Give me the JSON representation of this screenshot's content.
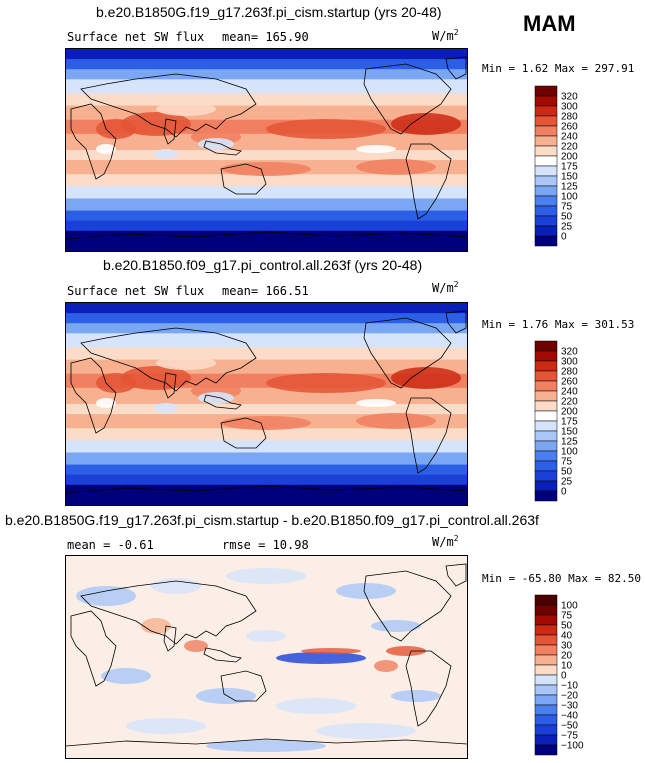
{
  "season_label": "MAM",
  "units": {
    "base": "W/m",
    "exp": "2"
  },
  "panels": [
    {
      "title": "b.e20.B1850G.f19_g17.263f.pi_cism.startup (yrs 20-48)",
      "subtitle_left": "Surface net SW flux",
      "subtitle_right": "mean= 165.90",
      "minmax": "Min =   1.62 Max = 297.91",
      "kind": "abs"
    },
    {
      "title": "b.e20.B1850.f09_g17.pi_control.all.263f (yrs 20-48)",
      "subtitle_left": "Surface net SW flux",
      "subtitle_right": "mean= 166.51",
      "minmax": "Min =   1.76 Max = 301.53",
      "kind": "abs"
    },
    {
      "title": "b.e20.B1850G.f19_g17.263f.pi_cism.startup - b.e20.B1850.f09_g17.pi_control.all.263f",
      "subtitle_left": "mean =  -0.61",
      "subtitle_right": "rmse =  10.98",
      "minmax": "Min = -65.80 Max =  82.50",
      "kind": "diff"
    }
  ],
  "chart_data": [
    {
      "type": "heatmap",
      "title": "b.e20.B1850G.f19_g17.263f.pi_cism.startup (yrs 20-48)",
      "variable": "Surface net SW flux",
      "mean": 165.9,
      "min": 1.62,
      "max": 297.91,
      "colorbar_levels": [
        0,
        25,
        50,
        75,
        100,
        125,
        150,
        175,
        200,
        220,
        240,
        260,
        280,
        300,
        320
      ],
      "colorbar_labels": [
        "320",
        "300",
        "280",
        "260",
        "240",
        "220",
        "200",
        "175",
        "150",
        "125",
        "100",
        "75",
        "50",
        "25",
        "0"
      ],
      "colors": [
        "#00007d",
        "#0a1fb8",
        "#1a40d8",
        "#2c5fe6",
        "#4a7fee",
        "#7aa7f4",
        "#a9c6f8",
        "#d6e4fb",
        "#ffffff",
        "#fbdcc8",
        "#f7b190",
        "#f08060",
        "#e45535",
        "#cc2a15",
        "#a00a00",
        "#6e0000"
      ]
    },
    {
      "type": "heatmap",
      "title": "b.e20.B1850.f09_g17.pi_control.all.263f (yrs 20-48)",
      "variable": "Surface net SW flux",
      "mean": 166.51,
      "min": 1.76,
      "max": 301.53,
      "colorbar_levels": [
        0,
        25,
        50,
        75,
        100,
        125,
        150,
        175,
        200,
        220,
        240,
        260,
        280,
        300,
        320
      ],
      "colorbar_labels": [
        "320",
        "300",
        "280",
        "260",
        "240",
        "220",
        "200",
        "175",
        "150",
        "125",
        "100",
        "75",
        "50",
        "25",
        "0"
      ],
      "colors": [
        "#00007d",
        "#0a1fb8",
        "#1a40d8",
        "#2c5fe6",
        "#4a7fee",
        "#7aa7f4",
        "#a9c6f8",
        "#d6e4fb",
        "#ffffff",
        "#fbdcc8",
        "#f7b190",
        "#f08060",
        "#e45535",
        "#cc2a15",
        "#a00a00",
        "#6e0000"
      ]
    },
    {
      "type": "heatmap",
      "title": "b.e20.B1850G.f19_g17.263f.pi_cism.startup - b.e20.B1850.f09_g17.pi_control.all.263f",
      "variable": "difference",
      "mean": -0.61,
      "rmse": 10.98,
      "min": -65.8,
      "max": 82.5,
      "colorbar_levels": [
        -100,
        -75,
        -50,
        -40,
        -30,
        -20,
        -10,
        0,
        10,
        20,
        30,
        40,
        50,
        75,
        100
      ],
      "colorbar_labels": [
        "100",
        "75",
        "50",
        "40",
        "30",
        "20",
        "10",
        "0",
        "−10",
        "−20",
        "−30",
        "−40",
        "−50",
        "−75",
        "−100"
      ],
      "colors": [
        "#00007d",
        "#0a1fb8",
        "#1a40d8",
        "#2c5fe6",
        "#4a7fee",
        "#7aa7f4",
        "#a9c6f8",
        "#d6e4fb",
        "#fbdcc8",
        "#f7b190",
        "#f08060",
        "#e45535",
        "#cc2a15",
        "#a00a00",
        "#6e0000",
        "#4a0000"
      ]
    }
  ]
}
